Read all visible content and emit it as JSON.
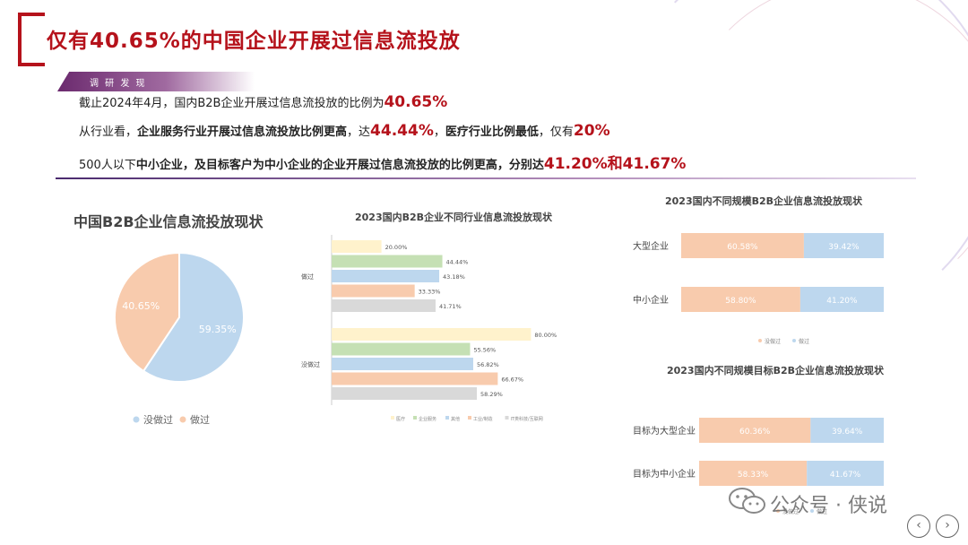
{
  "header": {
    "title": "仅有40.65%的中国企业开展过信息流投放",
    "tag": "调 研 发 现"
  },
  "findings": {
    "line1": {
      "text": "截止2024年4月，国内B2B企业开展过信息流投放的比例为",
      "value": "40.65%"
    },
    "line2": {
      "prefix": "从行业看，",
      "bold1": "企业服务行业开展过信息流投放比例更高",
      "mid1": "，达",
      "value1": "44.44%",
      "mid2": "，",
      "bold2": "医疗行业比例最低",
      "mid3": "，仅有",
      "value2": "20%"
    },
    "line3": {
      "prefix": "500人以下",
      "bold1": "中小企业",
      "bold2": "，及目标客户为中小企业的企业开展过信息流投放的比例更高，分别达",
      "value": "41.20%和41.67%"
    }
  },
  "colors": {
    "accent": "#b5121b",
    "blue": "#bdd7ee",
    "orange": "#f8cbad",
    "yellow": "#fff2cc",
    "green": "#c5e0b4",
    "gray": "#d9d9d9"
  },
  "chart_data": [
    {
      "type": "pie",
      "title": "中国B2B企业信息流投放现状",
      "categories": [
        "没做过",
        "做过"
      ],
      "values": [
        59.35,
        40.65
      ],
      "data_labels": [
        "59.35%",
        "40.65%"
      ],
      "colors": [
        "#bdd7ee",
        "#f8cbad"
      ],
      "legend": "bottom"
    },
    {
      "type": "bar",
      "title": "2023国内B2B企业不同行业信息流投放现状",
      "categories": [
        "做过",
        "没做过"
      ],
      "series": [
        {
          "name": "医疗",
          "values": [
            20.0,
            80.0
          ],
          "labels": [
            "20.00%",
            "80.00%"
          ],
          "color": "#fff2cc"
        },
        {
          "name": "企业服务",
          "values": [
            44.44,
            55.56
          ],
          "labels": [
            "44.44%",
            "55.56%"
          ],
          "color": "#c5e0b4"
        },
        {
          "name": "其他",
          "values": [
            43.18,
            56.82
          ],
          "labels": [
            "43.18%",
            "56.82%"
          ],
          "color": "#bdd7ee"
        },
        {
          "name": "工业/制造",
          "values": [
            33.33,
            66.67
          ],
          "labels": [
            "33.33%",
            "66.67%"
          ],
          "color": "#f8cbad"
        },
        {
          "name": "IT类科技/互联网",
          "values": [
            41.71,
            58.29
          ],
          "labels": [
            "41.71%",
            "58.29%"
          ],
          "color": "#d9d9d9"
        }
      ],
      "xlim": [
        0,
        100
      ],
      "legend": "bottom"
    },
    {
      "type": "bar",
      "title": "2023国内不同规模B2B企业信息流投放现状",
      "categories": [
        "大型企业",
        "中小企业"
      ],
      "series": [
        {
          "name": "没做过",
          "values": [
            60.58,
            58.8
          ],
          "labels": [
            "60.58%",
            "58.80%"
          ],
          "color": "#f8cbad"
        },
        {
          "name": "做过",
          "values": [
            39.42,
            41.2
          ],
          "labels": [
            "39.42%",
            "41.20%"
          ],
          "color": "#bdd7ee"
        }
      ],
      "stacked": true,
      "legend": "bottom"
    },
    {
      "type": "bar",
      "title": "2023国内不同规模目标B2B企业信息流投放现状",
      "categories": [
        "目标为大型企业",
        "目标为中小企业"
      ],
      "series": [
        {
          "name": "没做过",
          "values": [
            60.36,
            58.33
          ],
          "labels": [
            "60.36%",
            "58.33%"
          ],
          "color": "#f8cbad"
        },
        {
          "name": "做过",
          "values": [
            39.64,
            41.67
          ],
          "labels": [
            "39.64%",
            "41.67%"
          ],
          "color": "#bdd7ee"
        }
      ],
      "stacked": true,
      "legend": "bottom"
    }
  ],
  "watermark": {
    "text": "公众号 · 侠说",
    "icon": "wechat-icon"
  },
  "nav": {
    "prev": "‹",
    "next": "›"
  }
}
